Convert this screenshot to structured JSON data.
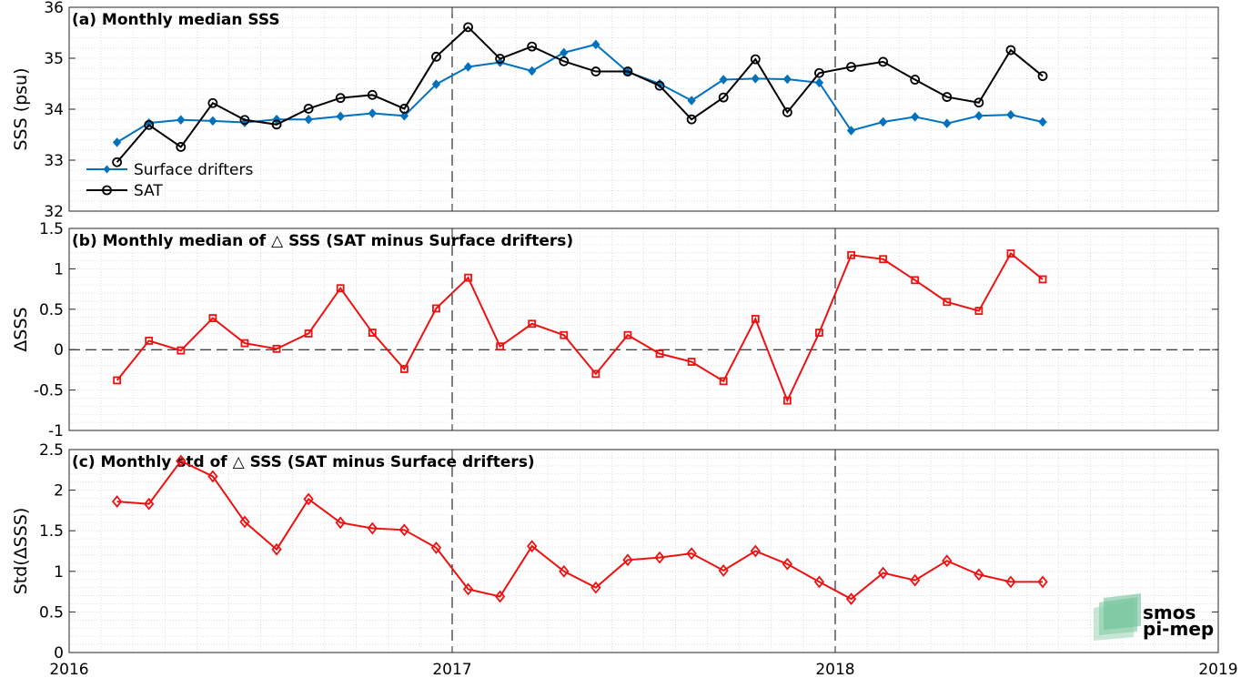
{
  "chart_data": [
    {
      "type": "line",
      "title": "(a) Monthly median SSS",
      "ylabel": "SSS (psu)",
      "ylim": [
        32,
        36
      ],
      "yticks": [
        32,
        33,
        34,
        35,
        36
      ],
      "xlim": [
        2016,
        2019
      ],
      "xticks": [
        2016,
        2017,
        2018,
        2019
      ],
      "grid": true,
      "legend_placement": "bottom-left",
      "series": [
        {
          "name": "Surface drifters",
          "color": "#0072bd",
          "marker": "filled-diamond",
          "values": [
            33.35,
            33.73,
            33.79,
            33.77,
            33.74,
            33.8,
            33.8,
            33.86,
            33.92,
            33.87,
            34.49,
            34.83,
            34.92,
            34.75,
            35.11,
            35.27,
            34.73,
            34.5,
            34.17,
            34.58,
            34.6,
            34.59,
            34.52,
            33.58,
            33.75,
            33.85,
            33.72,
            33.87,
            33.89,
            33.75
          ]
        },
        {
          "name": "SAT",
          "color": "#000000",
          "marker": "open-circle",
          "values": [
            32.96,
            33.69,
            33.26,
            34.12,
            33.79,
            33.7,
            34.01,
            34.22,
            34.28,
            34.01,
            35.03,
            35.61,
            34.99,
            35.23,
            34.94,
            34.74,
            34.74,
            34.46,
            33.8,
            34.23,
            34.98,
            33.94,
            34.71,
            34.83,
            34.93,
            34.58,
            34.24,
            34.13,
            35.16,
            34.65
          ]
        }
      ]
    },
    {
      "type": "line",
      "title": "(b) Monthly median of △ SSS (SAT minus Surface drifters)",
      "ylabel": "ΔSSS",
      "ylim": [
        -1,
        1.5
      ],
      "yticks": [
        -1,
        -0.5,
        0,
        0.5,
        1,
        1.5
      ],
      "ytick_labels": [
        "-1",
        "-0.5",
        "0",
        "0.5",
        "1",
        "1.5"
      ],
      "xlim": [
        2016,
        2019
      ],
      "xticks": [
        2016,
        2017,
        2018,
        2019
      ],
      "grid": true,
      "zero_line": true,
      "series": [
        {
          "color": "#ee1111",
          "marker": "open-square",
          "values": [
            -0.38,
            0.11,
            -0.01,
            0.39,
            0.08,
            0.01,
            0.2,
            0.76,
            0.21,
            -0.24,
            0.51,
            0.89,
            0.04,
            0.32,
            0.18,
            -0.3,
            0.18,
            -0.05,
            -0.15,
            -0.39,
            0.38,
            -0.63,
            0.21,
            1.17,
            1.12,
            0.86,
            0.59,
            0.48,
            1.19,
            0.87
          ]
        }
      ]
    },
    {
      "type": "line",
      "title": "(c) Monthly std of △ SSS (SAT minus Surface drifters)",
      "ylabel": "Std(ΔSSS)",
      "ylim": [
        0,
        2.5
      ],
      "yticks": [
        0,
        0.5,
        1,
        1.5,
        2,
        2.5
      ],
      "ytick_labels": [
        "0",
        "0.5",
        "1",
        "1.5",
        "2",
        "2.5"
      ],
      "xlim": [
        2016,
        2019
      ],
      "xticks": [
        2016,
        2017,
        2018,
        2019
      ],
      "xtick_labels": [
        "2016",
        "2017",
        "2018",
        "2019"
      ],
      "grid": true,
      "series": [
        {
          "color": "#ee1111",
          "marker": "open-diamond",
          "values": [
            1.86,
            1.83,
            2.36,
            2.17,
            1.61,
            1.27,
            1.89,
            1.6,
            1.53,
            1.51,
            1.29,
            0.78,
            0.69,
            1.31,
            1.0,
            0.8,
            1.14,
            1.17,
            1.22,
            1.01,
            1.25,
            1.09,
            0.87,
            0.66,
            0.98,
            0.89,
            1.13,
            0.96,
            0.87,
            0.87
          ]
        }
      ]
    }
  ],
  "x_dates": [
    2016.125,
    2016.2083,
    2016.2917,
    2016.375,
    2016.4583,
    2016.5417,
    2016.625,
    2016.7083,
    2016.7917,
    2016.875,
    2016.9583,
    2017.0417,
    2017.125,
    2017.2083,
    2017.2917,
    2017.375,
    2017.4583,
    2017.5417,
    2017.625,
    2017.7083,
    2017.7917,
    2017.875,
    2017.9583,
    2018.0417,
    2018.125,
    2018.2083,
    2018.2917,
    2018.375,
    2018.4583,
    2018.5417
  ],
  "year_markers": [
    2017,
    2018
  ],
  "logo": {
    "line1": "smos",
    "line2": "pi-mep",
    "color": "#6fbf97"
  }
}
